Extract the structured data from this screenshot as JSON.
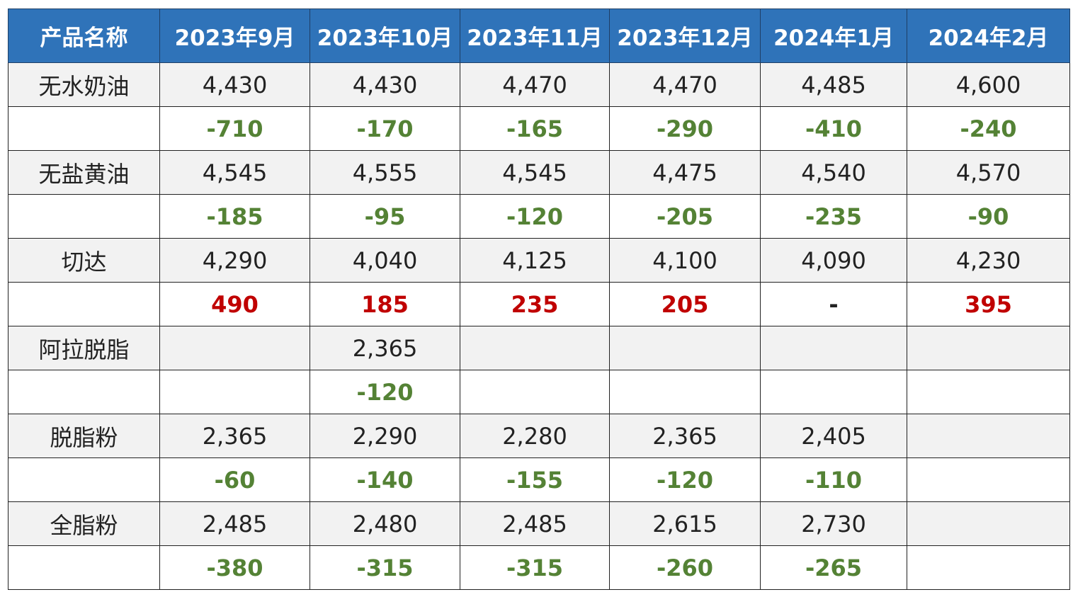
{
  "table": {
    "header": [
      "产品名称",
      "2023年9月",
      "2023年10月",
      "2023年11月",
      "2023年12月",
      "2024年1月",
      "2024年2月"
    ],
    "rows": [
      {
        "label": "无水奶油",
        "cells": [
          "4,430",
          "4,430",
          "4,470",
          "4,470",
          "4,485",
          "4,600"
        ]
      },
      {
        "label": null,
        "cells": [
          "-710",
          "-170",
          "-165",
          "-290",
          "-410",
          "-240"
        ]
      },
      {
        "label": "无盐黄油",
        "cells": [
          "4,545",
          "4,555",
          "4,545",
          "4,475",
          "4,540",
          "4,570"
        ]
      },
      {
        "label": null,
        "cells": [
          "-185",
          "-95",
          "-120",
          "-205",
          "-235",
          "-90"
        ]
      },
      {
        "label": "切达",
        "cells": [
          "4,290",
          "4,040",
          "4,125",
          "4,100",
          "4,090",
          "4,230"
        ]
      },
      {
        "label": null,
        "cells": [
          "490",
          "185",
          "235",
          "205",
          "-",
          "395"
        ]
      },
      {
        "label": "阿拉脱脂",
        "cells": [
          null,
          "2,365",
          null,
          null,
          null,
          null
        ]
      },
      {
        "label": null,
        "cells": [
          null,
          "-120",
          null,
          null,
          null,
          null
        ]
      },
      {
        "label": "脱脂粉",
        "cells": [
          "2,365",
          "2,290",
          "2,280",
          "2,365",
          "2,405",
          null
        ]
      },
      {
        "label": null,
        "cells": [
          "-60",
          "-140",
          "-155",
          "-120",
          "-110",
          null
        ]
      },
      {
        "label": "全脂粉",
        "cells": [
          "2,485",
          "2,480",
          "2,485",
          "2,615",
          "2,730",
          null
        ]
      },
      {
        "label": null,
        "cells": [
          "-380",
          "-315",
          "-315",
          "-260",
          "-265",
          null
        ]
      }
    ]
  }
}
